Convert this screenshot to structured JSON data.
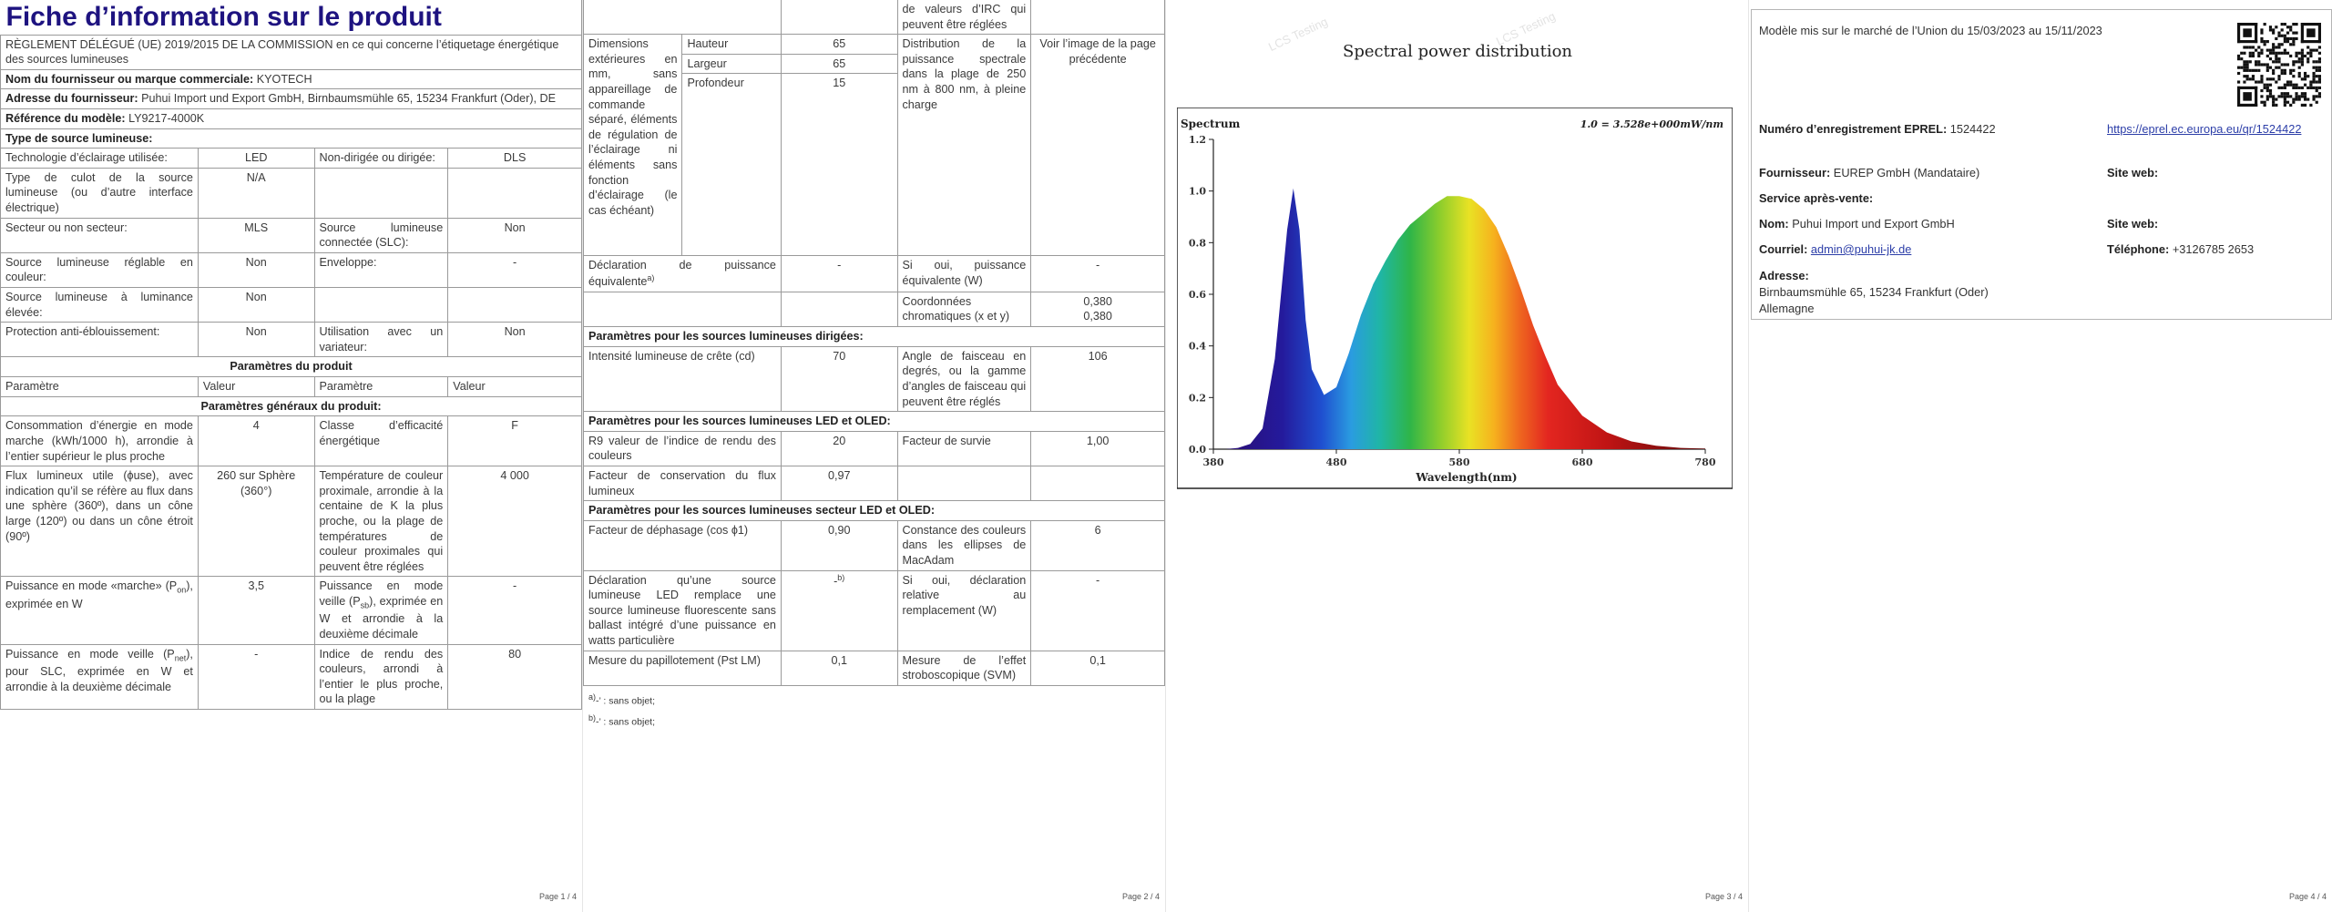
{
  "page1": {
    "title": "Fiche d’information sur le produit",
    "regulation": "RÈGLEMENT DÉLÉGUÉ (UE) 2019/2015 DE LA COMMISSION en ce qui concerne l’étiquetage énergétique des sources lumineuses",
    "supplier_name_label": "Nom du fournisseur ou marque commerciale:",
    "supplier_name_value": "KYOTECH",
    "supplier_address_label": "Adresse du fournisseur:",
    "supplier_address_value": "Puhui Import und Export GmbH, Birnbaumsmühle 65, 15234 Frankfurt (Oder), DE",
    "model_ref_label": "Référence du modèle:",
    "model_ref_value": "LY9217-4000K",
    "light_type_heading": "Type de source lumineuse:",
    "rows_a": [
      {
        "l1": "Technologie d’éclairage utilisée:",
        "v1": "LED",
        "l2": "Non-dirigée ou dirigée:",
        "v2": "DLS"
      },
      {
        "l1": "Type de culot de la source lumineuse (ou d’autre interface électrique)",
        "v1": "N/A",
        "l2": "",
        "v2": ""
      },
      {
        "l1": "Secteur ou non secteur:",
        "v1": "MLS",
        "l2": "Source lumineuse connectée (SLC):",
        "v2": "Non"
      },
      {
        "l1": "Source lumineuse réglable en couleur:",
        "v1": "Non",
        "l2": "Enveloppe:",
        "v2": "-"
      },
      {
        "l1": "Source lumineuse à luminance élevée:",
        "v1": "Non",
        "l2": "",
        "v2": ""
      },
      {
        "l1": "Protection anti-éblouissement:",
        "v1": "Non",
        "l2": "Utilisation avec un variateur:",
        "v2": "Non"
      }
    ],
    "params_heading": "Paramètres du produit",
    "col_headers": [
      "Paramètre",
      "Valeur",
      "Paramètre",
      "Valeur"
    ],
    "general_heading": "Paramètres généraux du produit:",
    "rows_b": [
      {
        "l1": "Consommation d’énergie en mode marche (kWh/1000 h), arrondie à l’entier supérieur le plus proche",
        "v1": "4",
        "l2": "Classe d’efficacité énergétique",
        "v2": "F"
      },
      {
        "l1": "Flux lumineux utile (ϕuse), avec indication qu’il se réfère au flux dans une sphère (360º), dans un cône large (120º) ou dans un cône étroit (90º)",
        "v1": "260 sur Sphère (360°)",
        "l2": "Température de couleur proximale, arrondie à la centaine de K la plus proche, ou la plage de températures de couleur proximales qui peuvent être réglées",
        "v2": "4 000"
      },
      {
        "l1_pre": "Puissance en mode «marche» (P",
        "l1_sub": "on",
        "l1_post": "), exprimée en W",
        "v1": "3,5",
        "l2_pre": "Puissance en mode veille (P",
        "l2_sub": "sb",
        "l2_post": "), exprimée en W et arrondie à la deuxième décimale",
        "v2": "-"
      },
      {
        "l1_pre": "Puissance en mode veille (P",
        "l1_sub": "net",
        "l1_post": "), pour SLC, exprimée en W et arrondie à la deuxième décimale",
        "v1": "-",
        "l2": "Indice de rendu des couleurs, arrondi à l’entier le plus proche, ou la plage",
        "v2": "80"
      }
    ],
    "page_no": "Page 1 / 4"
  },
  "page2": {
    "top_continuation": "de valeurs d’IRC qui peuvent être réglées",
    "dims_label": "Dimensions extérieures en mm, sans appareillage de commande séparé, éléments de régulation de l’éclairage ni éléments sans fonction d’éclairage (le cas échéant)",
    "dims": [
      {
        "name": "Hauteur",
        "value": "65"
      },
      {
        "name": "Largeur",
        "value": "65"
      },
      {
        "name": "Profondeur",
        "value": "15"
      }
    ],
    "spectral_label": "Distribution de la puissance spectrale dans la plage de 250 nm à 800 nm, à pleine charge",
    "spectral_value": "Voir l’image de la page précédente",
    "power_decl_label": "Déclaration de puissance équivalente",
    "power_decl_sup": "a)",
    "power_decl_value": "-",
    "equiv_label": "Si oui, puissance équivalente (W)",
    "equiv_value": "-",
    "chroma_label": "Coordonnées chromatiques (x et y)",
    "chroma_x": "0,380",
    "chroma_y": "0,380",
    "directed_heading": "Paramètres pour les sources lumineuses dirigées:",
    "peak_label": "Intensité lumineuse de crête (cd)",
    "peak_value": "70",
    "beam_label": "Angle de faisceau en degrés, ou la gamme d’angles de faisceau qui peuvent être réglés",
    "beam_value": "106",
    "led_heading": "Paramètres pour les sources lumineuses LED et OLED:",
    "r9_label": "R9 valeur de l’indice de rendu des couleurs",
    "r9_value": "20",
    "survival_label": "Facteur de survie",
    "survival_value": "1,00",
    "flux_maint_label": "Facteur de conservation du flux lumineux",
    "flux_maint_value": "0,97",
    "mains_heading": "Paramètres pour les sources lumineuses secteur LED et OLED:",
    "cos_label": "Facteur de déphasage (cos ϕ1)",
    "cos_value": "0,90",
    "macadam_label": "Constance des couleurs dans les ellipses de MacAdam",
    "macadam_value": "6",
    "replace_label": "Déclaration qu’une source lumineuse LED remplace une source lumineuse fluorescente sans ballast intégré d’une puissance en watts particulière",
    "replace_value": "-",
    "replace_sup": "b)",
    "replace_claim_label": "Si oui, déclaration relative au remplacement (W)",
    "replace_claim_value": "-",
    "flicker_label": "Mesure du papillotement (Pst LM)",
    "flicker_value": "0,1",
    "strobe_label": "Mesure de l’effet stroboscopique (SVM)",
    "strobe_value": "0,1",
    "note_a_mark": "a)",
    "note_a_text": "-’ : sans objet;",
    "note_b_mark": "b)",
    "note_b_text": "-’ : sans objet;",
    "page_no": "Page 2 / 4"
  },
  "page3": {
    "chart_title": "Spectral power distribution",
    "page_no": "Page 3 / 4",
    "watermark": "LCS Testing"
  },
  "chart_data": {
    "type": "area",
    "title": "Spectral power distribution",
    "ylabel": "Spectrum",
    "xlabel": "Wavelength(nm)",
    "annotation": "1.0 = 3.528e+000mW/nm",
    "x_ticks": [
      "380",
      "480",
      "580",
      "680",
      "780"
    ],
    "y_ticks": [
      "0.0",
      "0.2",
      "0.4",
      "0.6",
      "0.8",
      "1.0",
      "1.2"
    ],
    "xlim": [
      380,
      780
    ],
    "ylim": [
      0,
      1.2
    ],
    "x": [
      380,
      390,
      400,
      410,
      420,
      430,
      440,
      445,
      450,
      455,
      460,
      470,
      480,
      490,
      500,
      510,
      520,
      530,
      540,
      550,
      560,
      570,
      580,
      590,
      600,
      610,
      620,
      630,
      640,
      650,
      660,
      680,
      700,
      720,
      740,
      760,
      780
    ],
    "y": [
      0.0,
      0.0,
      0.005,
      0.02,
      0.08,
      0.35,
      0.85,
      1.01,
      0.85,
      0.5,
      0.31,
      0.21,
      0.24,
      0.37,
      0.52,
      0.64,
      0.73,
      0.81,
      0.87,
      0.91,
      0.95,
      0.98,
      0.98,
      0.97,
      0.93,
      0.86,
      0.75,
      0.62,
      0.48,
      0.36,
      0.25,
      0.13,
      0.065,
      0.03,
      0.013,
      0.005,
      0.002
    ]
  },
  "page4": {
    "market_text": "Modèle mis sur le marché de l’Union du 15/03/2023 au 15/11/2023",
    "eprel_label": "Numéro d’enregistrement EPREL:",
    "eprel_value": "1524422",
    "eprel_link": "https://eprel.ec.europa.eu/qr/1524422",
    "supplier_label": "Fournisseur:",
    "supplier_value": "EUREP GmbH (Mandataire)",
    "website_label": "Site web:",
    "service_label": "Service après-vente:",
    "name_label": "Nom:",
    "name_value": "Puhui Import und Export GmbH",
    "website2_label": "Site web:",
    "email_label": "Courriel:",
    "email_value": "admin@puhui-jk.de",
    "phone_label": "Téléphone:",
    "phone_value": "+3126785 2653",
    "address_label": "Adresse:",
    "address_line1": "Birnbaumsmühle 65, 15234 Frankfurt (Oder)",
    "address_line2": "Allemagne",
    "page_no": "Page 4 / 4"
  }
}
